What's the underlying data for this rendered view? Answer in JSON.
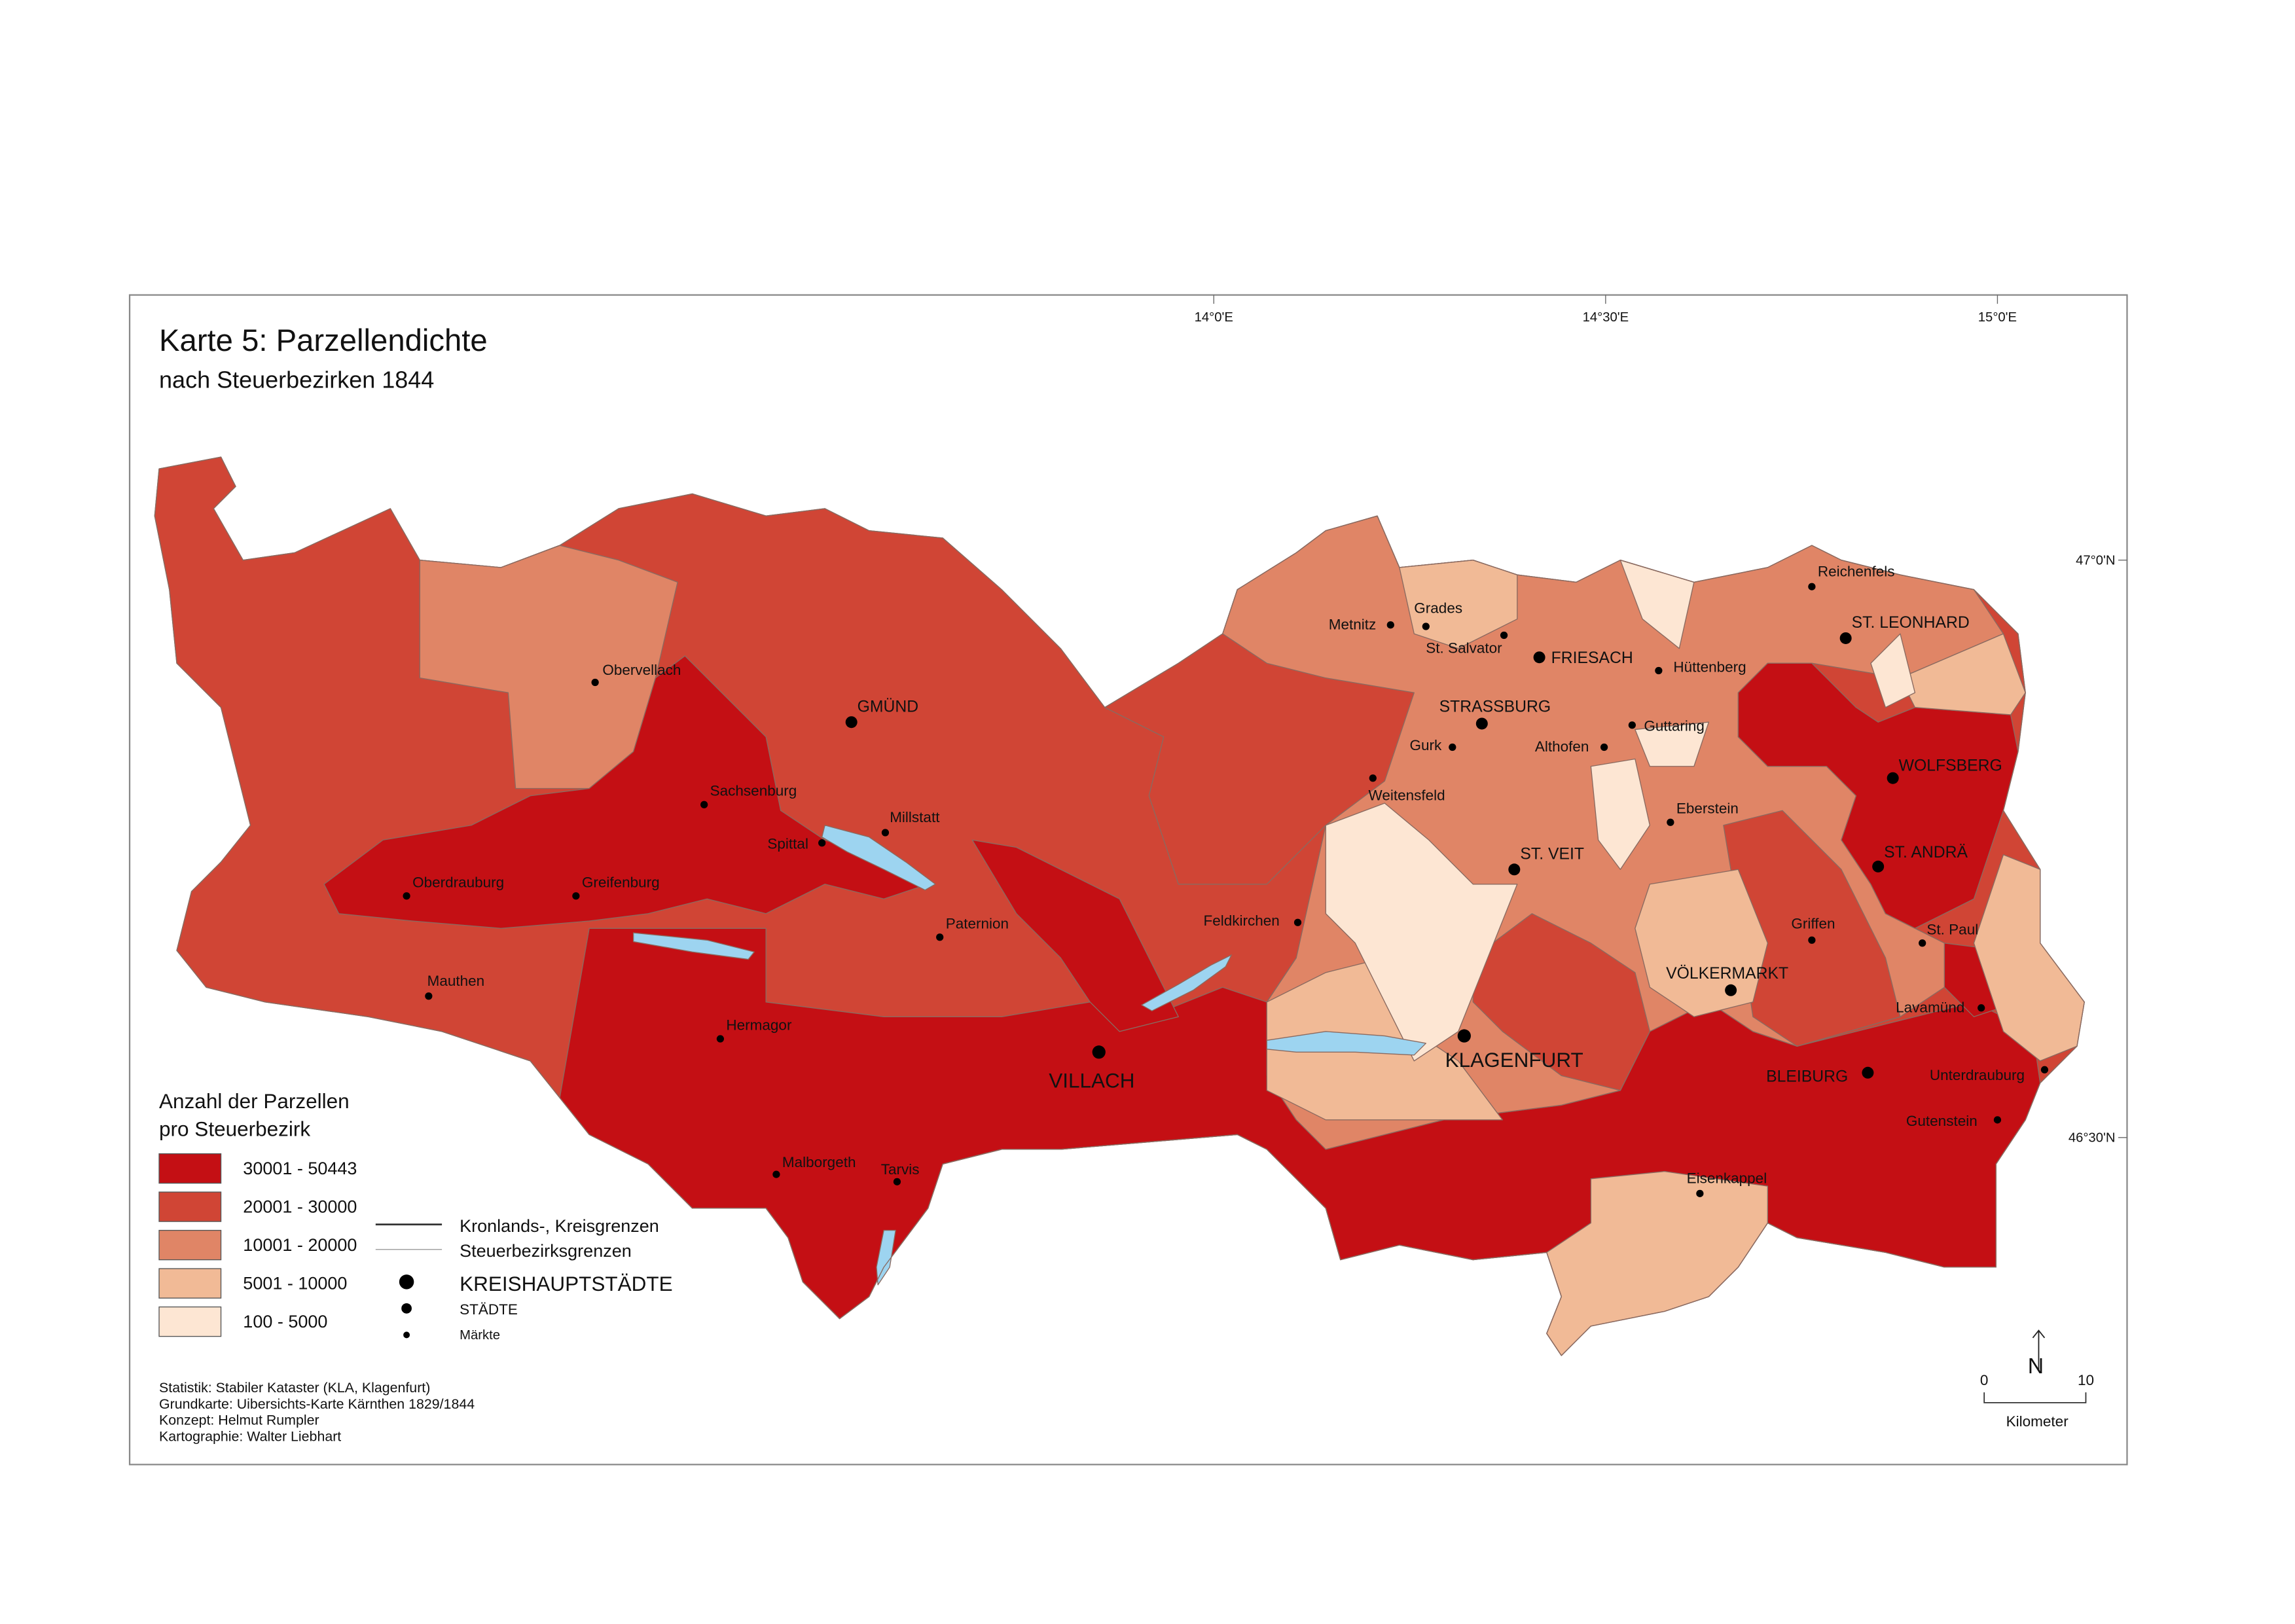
{
  "title": "Karte 5: Parzellendichte",
  "subtitle": "nach Steuerbezirken 1844",
  "graticule": {
    "lon": [
      "14°0'E",
      "14°30'E",
      "15°0'E"
    ],
    "lat": [
      "47°0'N",
      "46°30'N"
    ]
  },
  "legend": {
    "title": [
      "Anzahl der Parzellen",
      "pro Steuerbezirk"
    ],
    "classes": [
      {
        "label": "30001 - 50443",
        "color": "#c40f14"
      },
      {
        "label": "20001 - 30000",
        "color": "#d04535"
      },
      {
        "label": "10001 - 20000",
        "color": "#e08566"
      },
      {
        "label": "5001 - 10000",
        "color": "#f1ba96"
      },
      {
        "label": "100 - 5000",
        "color": "#fde6d3"
      }
    ],
    "lines": [
      "Kronlands-, Kreisgrenzen",
      "Steuerbezirksgrenzen"
    ],
    "points": [
      "KREISHAUPTSTÄDTE",
      "STÄDTE",
      "Märkte"
    ]
  },
  "places": {
    "kreishauptstaedte": [
      "VILLACH",
      "KLAGENFURT"
    ],
    "staedte": [
      "GMÜND",
      "FRIESACH",
      "STRASSBURG",
      "ST. VEIT",
      "ST. LEONHARD",
      "WOLFSBERG",
      "ST. ANDRÄ",
      "VÖLKERMARKT",
      "BLEIBURG"
    ],
    "maerkte": [
      "Obervellach",
      "Sachsenburg",
      "Millstatt",
      "Spittal",
      "Oberdrauburg",
      "Greifenburg",
      "Paternion",
      "Mauthen",
      "Hermagor",
      "Malborgeth",
      "Tarvis",
      "Feldkirchen",
      "Metnitz",
      "Grades",
      "St. Salvator",
      "Hüttenberg",
      "Guttaring",
      "Gurk",
      "Althofen",
      "Weitensfeld",
      "Eberstein",
      "Reichenfels",
      "Griffen",
      "St. Paul",
      "Lavamünd",
      "Unterdrauburg",
      "Gutenstein",
      "Eisenkappel"
    ]
  },
  "credits": [
    "Statistik: Stabiler Kataster (KLA, Klagenfurt)",
    "Grundkarte: Uibersichts-Karte Kärnthen 1829/1844",
    "Konzept: Helmut Rumpler",
    "Kartographie: Walter Liebhart"
  ],
  "scale": {
    "ticks": [
      "0",
      "10"
    ],
    "unit": "Kilometer",
    "north": "N"
  }
}
